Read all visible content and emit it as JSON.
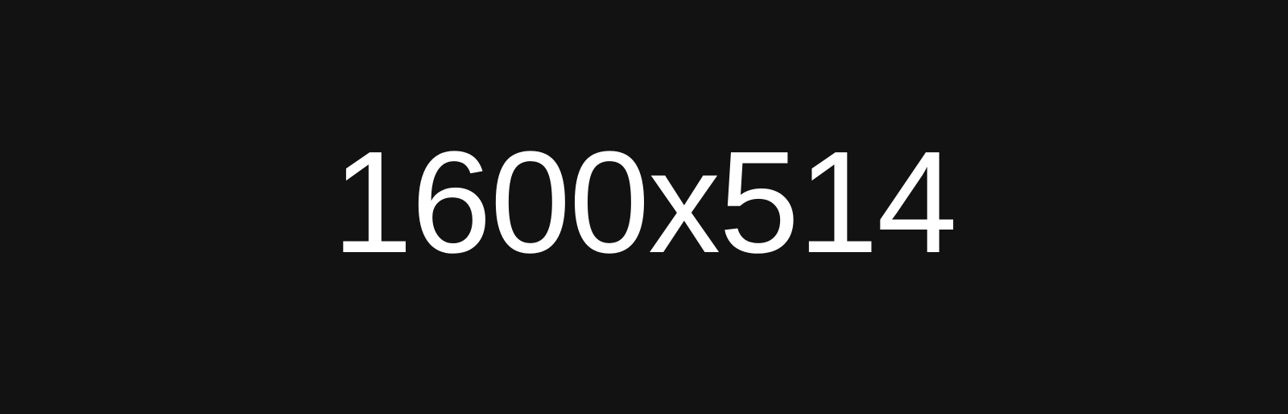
{
  "placeholder": {
    "text": "1600x514"
  },
  "colors": {
    "background": "#121212",
    "text": "#ffffff"
  }
}
